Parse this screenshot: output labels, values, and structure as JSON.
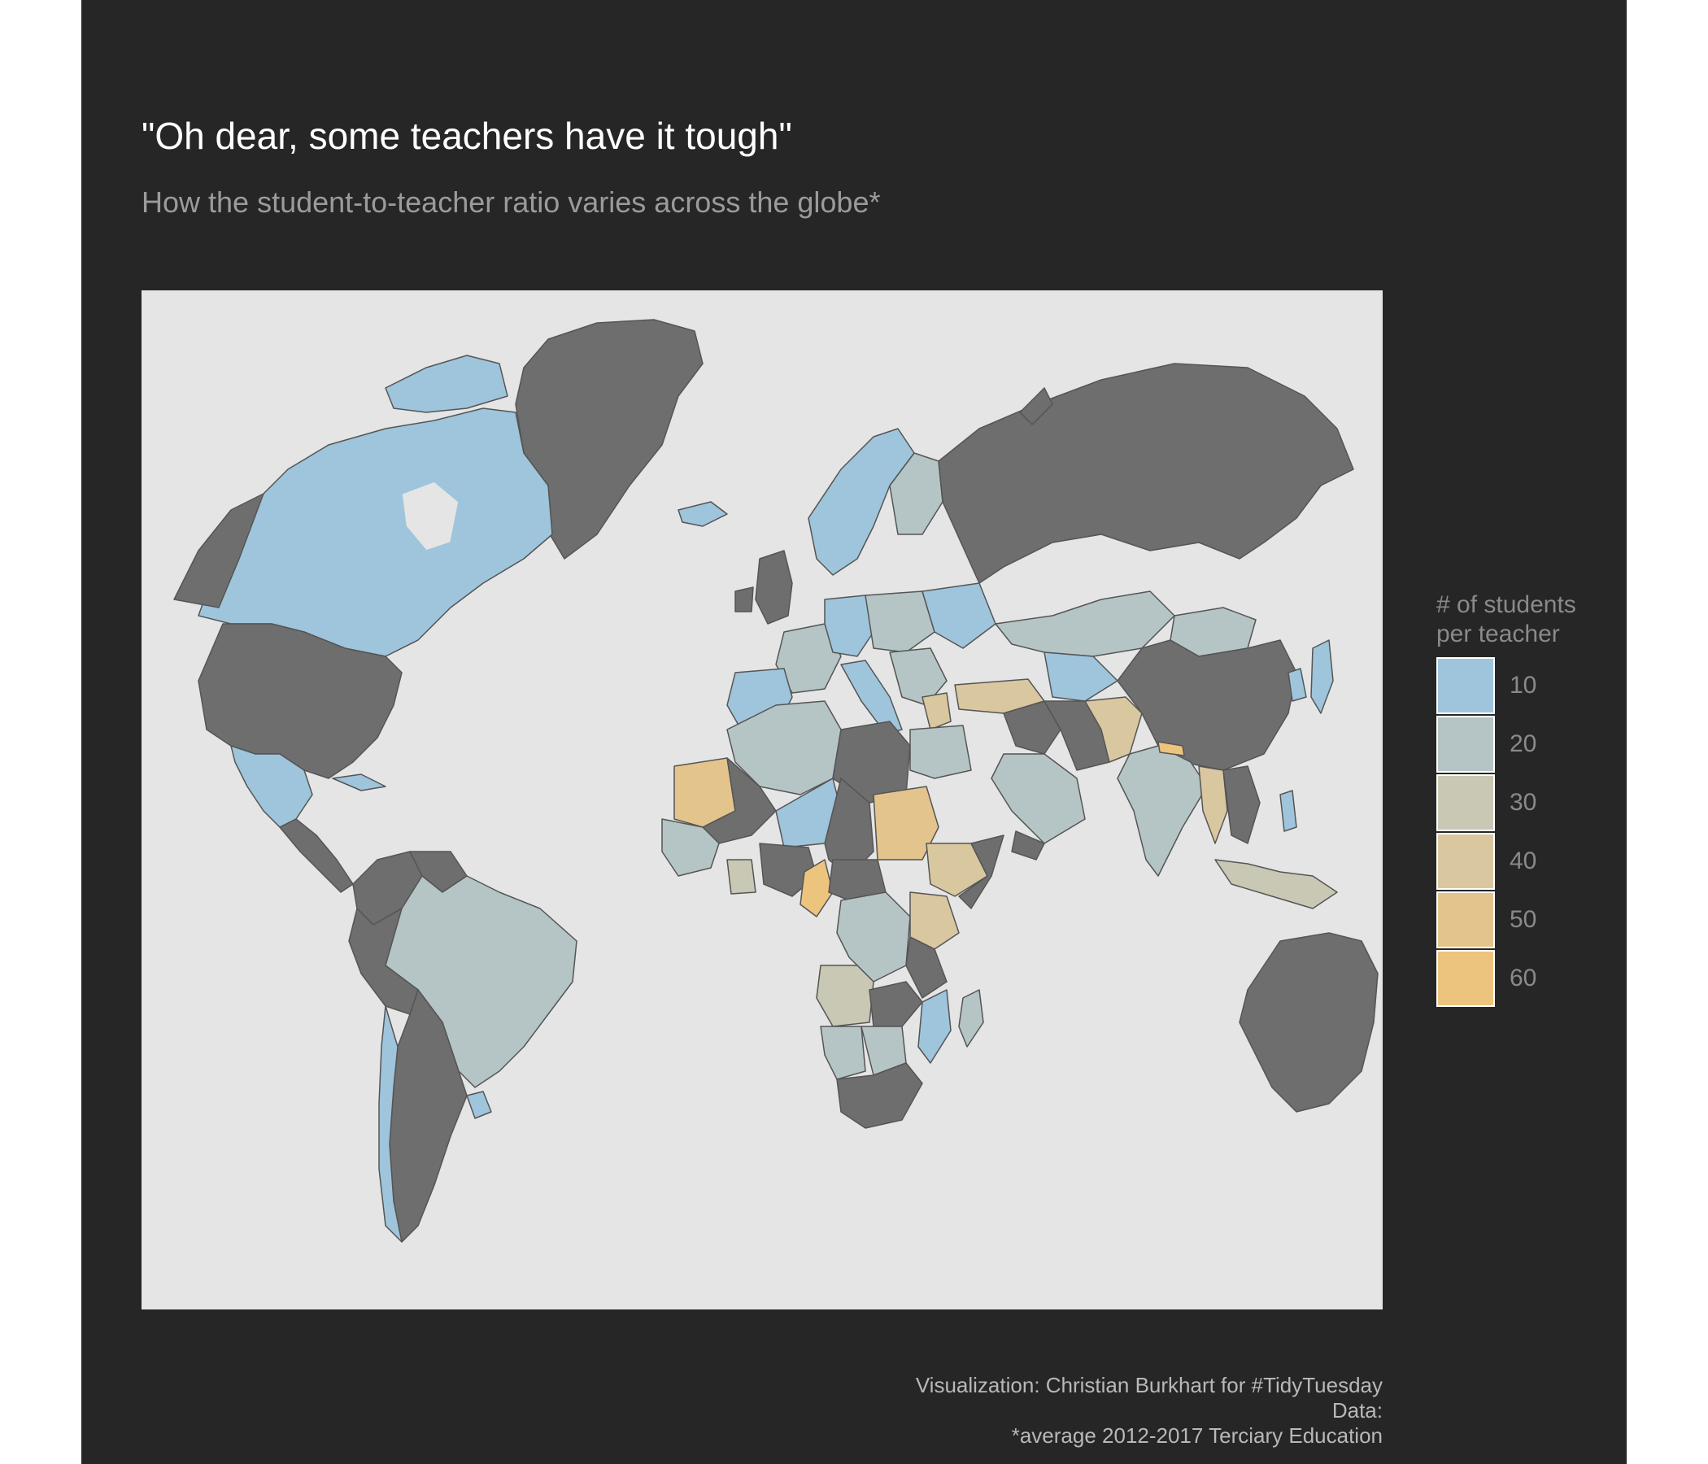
{
  "header": {
    "title": "\"Oh dear, some teachers have it tough\"",
    "subtitle": "How the student-to-teacher ratio varies across the globe*"
  },
  "legend": {
    "title_line1": "# of students",
    "title_line2": "per teacher",
    "items": [
      {
        "label": "10",
        "color": "#9ec5db"
      },
      {
        "label": "20",
        "color": "#b5c5c5"
      },
      {
        "label": "30",
        "color": "#c9c8b4"
      },
      {
        "label": "40",
        "color": "#d9c7a0"
      },
      {
        "label": "50",
        "color": "#e4c48d"
      },
      {
        "label": "60",
        "color": "#edc47d"
      }
    ]
  },
  "caption": {
    "line1": "Visualization: Christian Burkhart for #TidyTuesday",
    "line2": "Data:",
    "line3": "*average 2012-2017 Terciary Education"
  },
  "colors": {
    "panel_background": "#262626",
    "map_background": "#e5e5e5",
    "no_data": "#6e6e6e",
    "border": "#555555"
  }
}
